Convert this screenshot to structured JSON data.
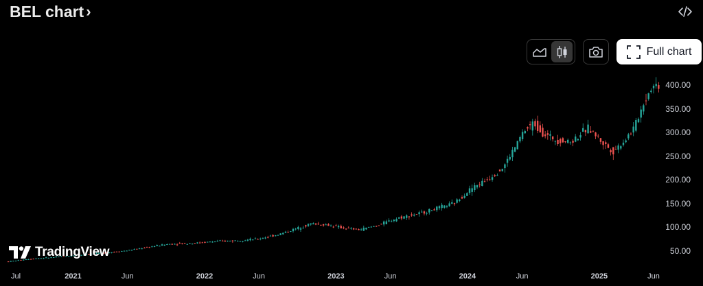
{
  "header": {
    "title": "BEL chart",
    "title_chevron": "›",
    "embed_icon": "code-embed-icon"
  },
  "toolbar": {
    "line_style_icon": "area-chart-icon",
    "candle_style_icon": "candlestick-icon",
    "active_style": "candles",
    "snapshot_icon": "camera-icon",
    "full_chart_icon": "fullscreen-icon",
    "full_chart_label": "Full chart"
  },
  "branding": {
    "logo_text": "TradingView"
  },
  "colors": {
    "up": "#26a69a",
    "down": "#ef5350",
    "background": "#000000",
    "text": "#d1d4dc"
  },
  "chart_data": {
    "type": "candlestick",
    "title": "",
    "x_tick_labels": [
      "Jul",
      "2021",
      "Jun",
      "2022",
      "Jun",
      "2023",
      "Jun",
      "2024",
      "Jun",
      "2025",
      "Jun"
    ],
    "y_tick_labels": [
      "400.00",
      "350.00",
      "300.00",
      "250.00",
      "200.00",
      "150.00",
      "100.00",
      "50.00"
    ],
    "y_ticks": [
      400,
      350,
      300,
      250,
      200,
      150,
      100,
      50
    ],
    "ylim": [
      20,
      420
    ],
    "xlim": [
      "2020-07-01",
      "2025-06-20"
    ],
    "grid": false,
    "series": [
      {
        "name": "BEL",
        "points": [
          [
            "2020-07-15",
            28
          ],
          [
            "2020-09-01",
            33
          ],
          [
            "2020-11-01",
            36
          ],
          [
            "2021-01-01",
            40
          ],
          [
            "2021-03-01",
            44
          ],
          [
            "2021-05-01",
            48
          ],
          [
            "2021-06-15",
            52
          ],
          [
            "2021-08-01",
            58
          ],
          [
            "2021-10-01",
            65
          ],
          [
            "2021-12-01",
            66
          ],
          [
            "2022-02-01",
            70
          ],
          [
            "2022-04-01",
            72
          ],
          [
            "2022-06-01",
            75
          ],
          [
            "2022-08-01",
            85
          ],
          [
            "2022-09-15",
            96
          ],
          [
            "2022-11-01",
            108
          ],
          [
            "2022-12-15",
            105
          ],
          [
            "2023-02-01",
            98
          ],
          [
            "2023-03-15",
            95
          ],
          [
            "2023-05-01",
            104
          ],
          [
            "2023-07-01",
            120
          ],
          [
            "2023-09-01",
            130
          ],
          [
            "2023-10-15",
            140
          ],
          [
            "2023-12-01",
            150
          ],
          [
            "2024-01-15",
            180
          ],
          [
            "2024-03-01",
            200
          ],
          [
            "2024-04-15",
            225
          ],
          [
            "2024-05-20",
            270
          ],
          [
            "2024-06-10",
            300
          ],
          [
            "2024-07-10",
            320
          ],
          [
            "2024-08-10",
            295
          ],
          [
            "2024-09-10",
            285
          ],
          [
            "2024-10-20",
            280
          ],
          [
            "2024-12-10",
            310
          ],
          [
            "2025-01-15",
            280
          ],
          [
            "2025-02-15",
            260
          ],
          [
            "2025-03-15",
            280
          ],
          [
            "2025-04-15",
            310
          ],
          [
            "2025-05-10",
            360
          ],
          [
            "2025-06-01",
            395
          ],
          [
            "2025-06-15",
            400
          ]
        ]
      }
    ]
  }
}
